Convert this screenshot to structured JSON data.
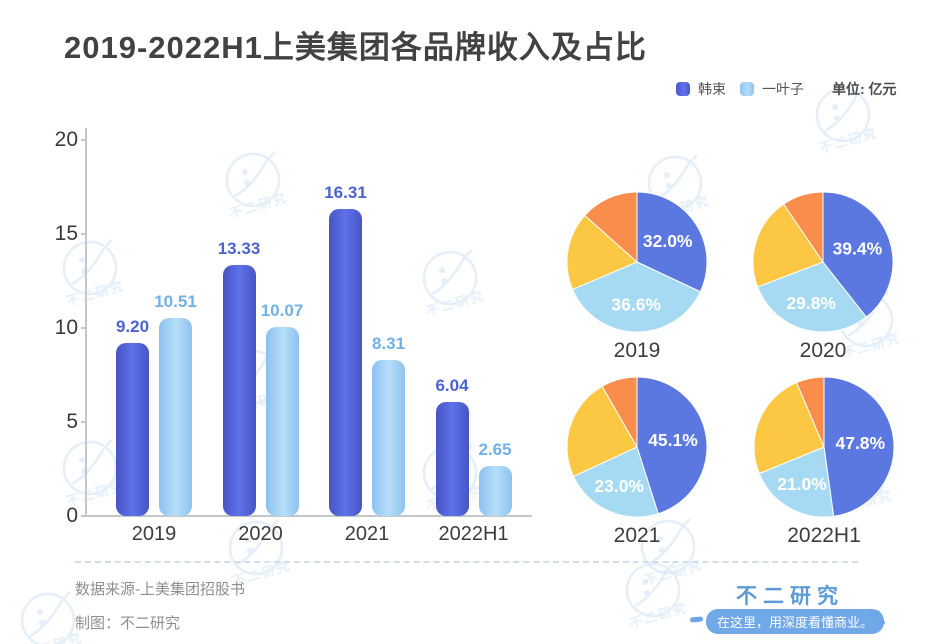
{
  "page": {
    "background": "#ffffff"
  },
  "header": {
    "title": "2019-2022H1上美集团各品牌收入及占比"
  },
  "legend": {
    "items": [
      {
        "id": "hanshu",
        "label": "韩束",
        "color": "#5166d8"
      },
      {
        "id": "yiyezi",
        "label": "一叶子",
        "color": "#a2d4f6"
      }
    ],
    "unit_label": "单位: 亿元"
  },
  "chart_data": [
    {
      "type": "bar",
      "title": "2019-2022H1上美集团各品牌收入及占比",
      "unit": "亿元",
      "categories": [
        "2019",
        "2020",
        "2021",
        "2022H1"
      ],
      "series": [
        {
          "id": "hanshu",
          "name": "韩束",
          "values": [
            9.2,
            13.33,
            16.31,
            6.04
          ],
          "value_labels": [
            "9.20",
            "13.33",
            "16.31",
            "6.04"
          ],
          "color": "#5166d8",
          "label_color": "#4a63d0"
        },
        {
          "id": "yiyezi",
          "name": "一叶子",
          "values": [
            10.51,
            10.07,
            8.31,
            2.65
          ],
          "value_labels": [
            "10.51",
            "10.07",
            "8.31",
            "2.65"
          ],
          "color": "#a2d4f6",
          "label_color": "#72b1e7"
        }
      ],
      "ylim": [
        0,
        20
      ],
      "yticks": [
        0,
        5,
        10,
        15,
        20
      ],
      "grid": false,
      "legend_position": "top-right"
    },
    {
      "type": "pie",
      "title": "2019",
      "slices": [
        {
          "id": "hanshu",
          "name": "韩束",
          "value": 32.0,
          "label": "32.0%",
          "color": "#5b77e0"
        },
        {
          "id": "yiyezi",
          "name": "一叶子",
          "value": 36.6,
          "label": "36.6%",
          "color": "#a6daf3"
        },
        {
          "id": "yellow",
          "name": "未标注-黄",
          "value": 18.0,
          "label": "",
          "color": "#fcc843",
          "estimated": true
        },
        {
          "id": "orange",
          "name": "未标注-橙",
          "value": 13.4,
          "label": "",
          "color": "#f98d4b",
          "estimated": true
        }
      ]
    },
    {
      "type": "pie",
      "title": "2020",
      "slices": [
        {
          "id": "hanshu",
          "name": "韩束",
          "value": 39.4,
          "label": "39.4%",
          "color": "#5b77e0"
        },
        {
          "id": "yiyezi",
          "name": "一叶子",
          "value": 29.8,
          "label": "29.8%",
          "color": "#a6daf3"
        },
        {
          "id": "yellow",
          "name": "未标注-黄",
          "value": 21.3,
          "label": "",
          "color": "#fcc843",
          "estimated": true
        },
        {
          "id": "orange",
          "name": "未标注-橙",
          "value": 9.5,
          "label": "",
          "color": "#f98d4b",
          "estimated": true
        }
      ]
    },
    {
      "type": "pie",
      "title": "2021",
      "slices": [
        {
          "id": "hanshu",
          "name": "韩束",
          "value": 45.1,
          "label": "45.1%",
          "color": "#5b77e0"
        },
        {
          "id": "yiyezi",
          "name": "一叶子",
          "value": 23.0,
          "label": "23.0%",
          "color": "#a6daf3"
        },
        {
          "id": "yellow",
          "name": "未标注-黄",
          "value": 23.6,
          "label": "",
          "color": "#fcc843",
          "estimated": true
        },
        {
          "id": "orange",
          "name": "未标注-橙",
          "value": 8.3,
          "label": "",
          "color": "#f98d4b",
          "estimated": true
        }
      ]
    },
    {
      "type": "pie",
      "title": "2022H1",
      "slices": [
        {
          "id": "hanshu",
          "name": "韩束",
          "value": 47.8,
          "label": "47.8%",
          "color": "#5b77e0"
        },
        {
          "id": "yiyezi",
          "name": "一叶子",
          "value": 21.0,
          "label": "21.0%",
          "color": "#a6daf3"
        },
        {
          "id": "yellow",
          "name": "未标注-黄",
          "value": 24.8,
          "label": "",
          "color": "#fcc843",
          "estimated": true
        },
        {
          "id": "orange",
          "name": "未标注-橙",
          "value": 6.4,
          "label": "",
          "color": "#f98d4b",
          "estimated": true
        }
      ]
    }
  ],
  "footer": {
    "source": "数据来源-上美集团招股书",
    "credit": "制图：不二研究"
  },
  "brand": {
    "logo_text": "不二研究",
    "tagline": "在这里，用深度看懂商业。"
  },
  "watermark": {
    "text": "不二研究"
  }
}
